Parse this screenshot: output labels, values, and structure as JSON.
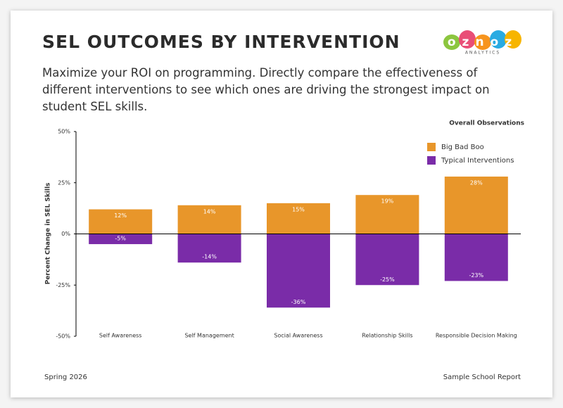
{
  "header": {
    "title": "SEL OUTCOMES BY INTERVENTION",
    "subtitle": "Maximize your ROI on programming. Directly compare the effectiveness of different interventions to see which ones are driving the strongest impact on student SEL skills.",
    "logo": "oznoz",
    "logo_caption": "ANALYTICS"
  },
  "chart_data": {
    "type": "bar",
    "title": "Overall Observations",
    "y_label": "Percent Change in SEL Skills",
    "categories": [
      "Self Awareness",
      "Self Management",
      "Social Awareness",
      "Relationship Skills",
      "Responsible Decision Making"
    ],
    "series": [
      {
        "name": "Big Bad Boo",
        "color": "#e8962a",
        "values": [
          12,
          14,
          15,
          19,
          28
        ],
        "value_labels": [
          "12%",
          "14%",
          "15%",
          "19%",
          "28%"
        ]
      },
      {
        "name": "Typical Interventions",
        "color": "#7a2ca8",
        "values": [
          -5,
          -14,
          -36,
          -25,
          -23
        ],
        "value_labels": [
          "-5%",
          "-14%",
          "-36%",
          "-25%",
          "-23%"
        ]
      }
    ],
    "ylim": [
      -50,
      50
    ],
    "yticks": [
      {
        "value": -50,
        "label": "-50%"
      },
      {
        "value": -25,
        "label": "-25%"
      },
      {
        "value": 0,
        "label": "0%"
      },
      {
        "value": 25,
        "label": "25%"
      },
      {
        "value": 50,
        "label": "50%"
      }
    ],
    "legend": "top-right"
  },
  "footer": {
    "left": "Spring 2026",
    "right": "Sample School Report"
  }
}
